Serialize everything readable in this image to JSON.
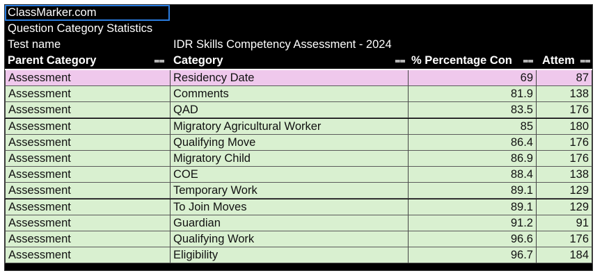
{
  "app": {
    "brand": "ClassMarker.com"
  },
  "report": {
    "title": "Question Category Statistics",
    "test_name_label": "Test name",
    "test_name_value": "IDR Skills Competency Assessment - 2024"
  },
  "table": {
    "columns": [
      "Parent Category",
      "Category",
      "% Percentage Con",
      "Attem"
    ],
    "rows": [
      {
        "parent": "Assessment",
        "category": "Residency Date",
        "pct": "69",
        "attempts": "87",
        "highlight": "pink"
      },
      {
        "parent": "Assessment",
        "category": "Comments",
        "pct": "81.9",
        "attempts": "138",
        "highlight": "green"
      },
      {
        "parent": "Assessment",
        "category": "QAD",
        "pct": "83.5",
        "attempts": "176",
        "highlight": "green"
      },
      {
        "parent": "Assessment",
        "category": "Migratory Agricultural Worker",
        "pct": "85",
        "attempts": "180",
        "highlight": "green"
      },
      {
        "parent": "Assessment",
        "category": "Qualifying Move",
        "pct": "86.4",
        "attempts": "176",
        "highlight": "green"
      },
      {
        "parent": "Assessment",
        "category": "Migratory Child",
        "pct": "86.9",
        "attempts": "176",
        "highlight": "green"
      },
      {
        "parent": "Assessment",
        "category": "COE",
        "pct": "88.4",
        "attempts": "138",
        "highlight": "green"
      },
      {
        "parent": "Assessment",
        "category": "Temporary Work",
        "pct": "89.1",
        "attempts": "129",
        "highlight": "green"
      },
      {
        "parent": "Assessment",
        "category": "To Join Moves",
        "pct": "89.1",
        "attempts": "129",
        "highlight": "green"
      },
      {
        "parent": "Assessment",
        "category": "Guardian",
        "pct": "91.2",
        "attempts": "91",
        "highlight": "green"
      },
      {
        "parent": "Assessment",
        "category": "Qualifying Work",
        "pct": "96.6",
        "attempts": "176",
        "highlight": "green"
      },
      {
        "parent": "Assessment",
        "category": "Eligibility",
        "pct": "96.7",
        "attempts": "184",
        "highlight": "green"
      }
    ]
  },
  "colors": {
    "pink_row": "#efc8ec",
    "green_row": "#d9f0d0",
    "selection_border": "#2a7de1"
  }
}
